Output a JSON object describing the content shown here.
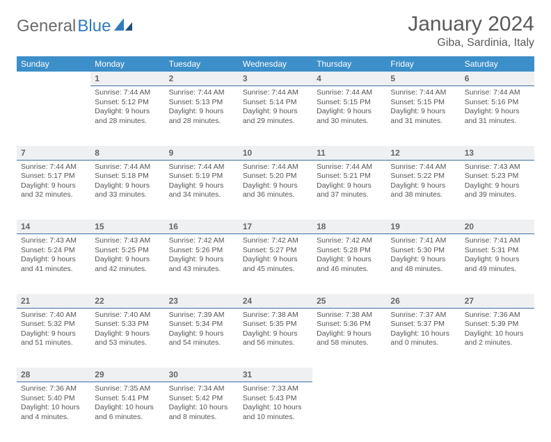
{
  "brand": {
    "part1": "General",
    "part2": "Blue"
  },
  "title": "January 2024",
  "location": "Giba, Sardinia, Italy",
  "header_bg": "#3d8fc9",
  "weekdays": [
    "Sunday",
    "Monday",
    "Tuesday",
    "Wednesday",
    "Thursday",
    "Friday",
    "Saturday"
  ],
  "weeks": [
    {
      "nums": [
        "",
        "1",
        "2",
        "3",
        "4",
        "5",
        "6"
      ],
      "cells": [
        "",
        "Sunrise: 7:44 AM\nSunset: 5:12 PM\nDaylight: 9 hours and 28 minutes.",
        "Sunrise: 7:44 AM\nSunset: 5:13 PM\nDaylight: 9 hours and 28 minutes.",
        "Sunrise: 7:44 AM\nSunset: 5:14 PM\nDaylight: 9 hours and 29 minutes.",
        "Sunrise: 7:44 AM\nSunset: 5:15 PM\nDaylight: 9 hours and 30 minutes.",
        "Sunrise: 7:44 AM\nSunset: 5:15 PM\nDaylight: 9 hours and 31 minutes.",
        "Sunrise: 7:44 AM\nSunset: 5:16 PM\nDaylight: 9 hours and 31 minutes."
      ]
    },
    {
      "nums": [
        "7",
        "8",
        "9",
        "10",
        "11",
        "12",
        "13"
      ],
      "cells": [
        "Sunrise: 7:44 AM\nSunset: 5:17 PM\nDaylight: 9 hours and 32 minutes.",
        "Sunrise: 7:44 AM\nSunset: 5:18 PM\nDaylight: 9 hours and 33 minutes.",
        "Sunrise: 7:44 AM\nSunset: 5:19 PM\nDaylight: 9 hours and 34 minutes.",
        "Sunrise: 7:44 AM\nSunset: 5:20 PM\nDaylight: 9 hours and 36 minutes.",
        "Sunrise: 7:44 AM\nSunset: 5:21 PM\nDaylight: 9 hours and 37 minutes.",
        "Sunrise: 7:44 AM\nSunset: 5:22 PM\nDaylight: 9 hours and 38 minutes.",
        "Sunrise: 7:43 AM\nSunset: 5:23 PM\nDaylight: 9 hours and 39 minutes."
      ]
    },
    {
      "nums": [
        "14",
        "15",
        "16",
        "17",
        "18",
        "19",
        "20"
      ],
      "cells": [
        "Sunrise: 7:43 AM\nSunset: 5:24 PM\nDaylight: 9 hours and 41 minutes.",
        "Sunrise: 7:43 AM\nSunset: 5:25 PM\nDaylight: 9 hours and 42 minutes.",
        "Sunrise: 7:42 AM\nSunset: 5:26 PM\nDaylight: 9 hours and 43 minutes.",
        "Sunrise: 7:42 AM\nSunset: 5:27 PM\nDaylight: 9 hours and 45 minutes.",
        "Sunrise: 7:42 AM\nSunset: 5:28 PM\nDaylight: 9 hours and 46 minutes.",
        "Sunrise: 7:41 AM\nSunset: 5:30 PM\nDaylight: 9 hours and 48 minutes.",
        "Sunrise: 7:41 AM\nSunset: 5:31 PM\nDaylight: 9 hours and 49 minutes."
      ]
    },
    {
      "nums": [
        "21",
        "22",
        "23",
        "24",
        "25",
        "26",
        "27"
      ],
      "cells": [
        "Sunrise: 7:40 AM\nSunset: 5:32 PM\nDaylight: 9 hours and 51 minutes.",
        "Sunrise: 7:40 AM\nSunset: 5:33 PM\nDaylight: 9 hours and 53 minutes.",
        "Sunrise: 7:39 AM\nSunset: 5:34 PM\nDaylight: 9 hours and 54 minutes.",
        "Sunrise: 7:38 AM\nSunset: 5:35 PM\nDaylight: 9 hours and 56 minutes.",
        "Sunrise: 7:38 AM\nSunset: 5:36 PM\nDaylight: 9 hours and 58 minutes.",
        "Sunrise: 7:37 AM\nSunset: 5:37 PM\nDaylight: 10 hours and 0 minutes.",
        "Sunrise: 7:36 AM\nSunset: 5:39 PM\nDaylight: 10 hours and 2 minutes."
      ]
    },
    {
      "nums": [
        "28",
        "29",
        "30",
        "31",
        "",
        "",
        ""
      ],
      "cells": [
        "Sunrise: 7:36 AM\nSunset: 5:40 PM\nDaylight: 10 hours and 4 minutes.",
        "Sunrise: 7:35 AM\nSunset: 5:41 PM\nDaylight: 10 hours and 6 minutes.",
        "Sunrise: 7:34 AM\nSunset: 5:42 PM\nDaylight: 10 hours and 8 minutes.",
        "Sunrise: 7:33 AM\nSunset: 5:43 PM\nDaylight: 10 hours and 10 minutes.",
        "",
        "",
        ""
      ]
    }
  ]
}
